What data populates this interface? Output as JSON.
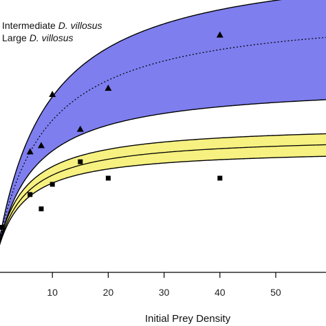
{
  "chart_data": {
    "type": "scatter",
    "xlabel": "Initial Prey Density",
    "ylabel": "",
    "xlim": [
      0,
      59
    ],
    "ylim": [
      -0.8,
      12.5
    ],
    "xticks": [
      10,
      20,
      30,
      40,
      50
    ],
    "grid": false,
    "legend": {
      "placement": "top-left",
      "entries": [
        {
          "prefix": "Intermediate ",
          "species": "D. villosus",
          "series": "intermediate"
        },
        {
          "prefix": "Large ",
          "species": "D. villosus",
          "series": "large"
        }
      ]
    },
    "series": [
      {
        "id": "large",
        "marker": "triangle",
        "band_color": "#7777ee",
        "line_style": "dotted",
        "points": [
          {
            "x": 6,
            "y": 5.1
          },
          {
            "x": 8,
            "y": 5.4
          },
          {
            "x": 10,
            "y": 7.9
          },
          {
            "x": 15,
            "y": 6.2
          },
          {
            "x": 20,
            "y": 8.2
          },
          {
            "x": 40,
            "y": 10.8
          }
        ],
        "fit": {
          "a": 1.45,
          "h": 0.082
        },
        "band": {
          "lower_a": 1.3,
          "lower_h": 0.118,
          "upper_a": 1.65,
          "upper_h": 0.068
        }
      },
      {
        "id": "intermediate",
        "marker": "square",
        "band_color": "#f5f07a",
        "line_style": "solid",
        "points": [
          {
            "x": 1,
            "y": 1.4
          },
          {
            "x": 6,
            "y": 3.0
          },
          {
            "x": 8,
            "y": 2.3
          },
          {
            "x": 10,
            "y": 3.5
          },
          {
            "x": 15,
            "y": 4.6
          },
          {
            "x": 20,
            "y": 3.8
          },
          {
            "x": 40,
            "y": 3.8
          }
        ],
        "fit": {
          "a": 1.2,
          "h": 0.17
        },
        "band": {
          "lower_a": 1.1,
          "lower_h": 0.19,
          "upper_a": 1.35,
          "upper_h": 0.155
        }
      }
    ]
  }
}
